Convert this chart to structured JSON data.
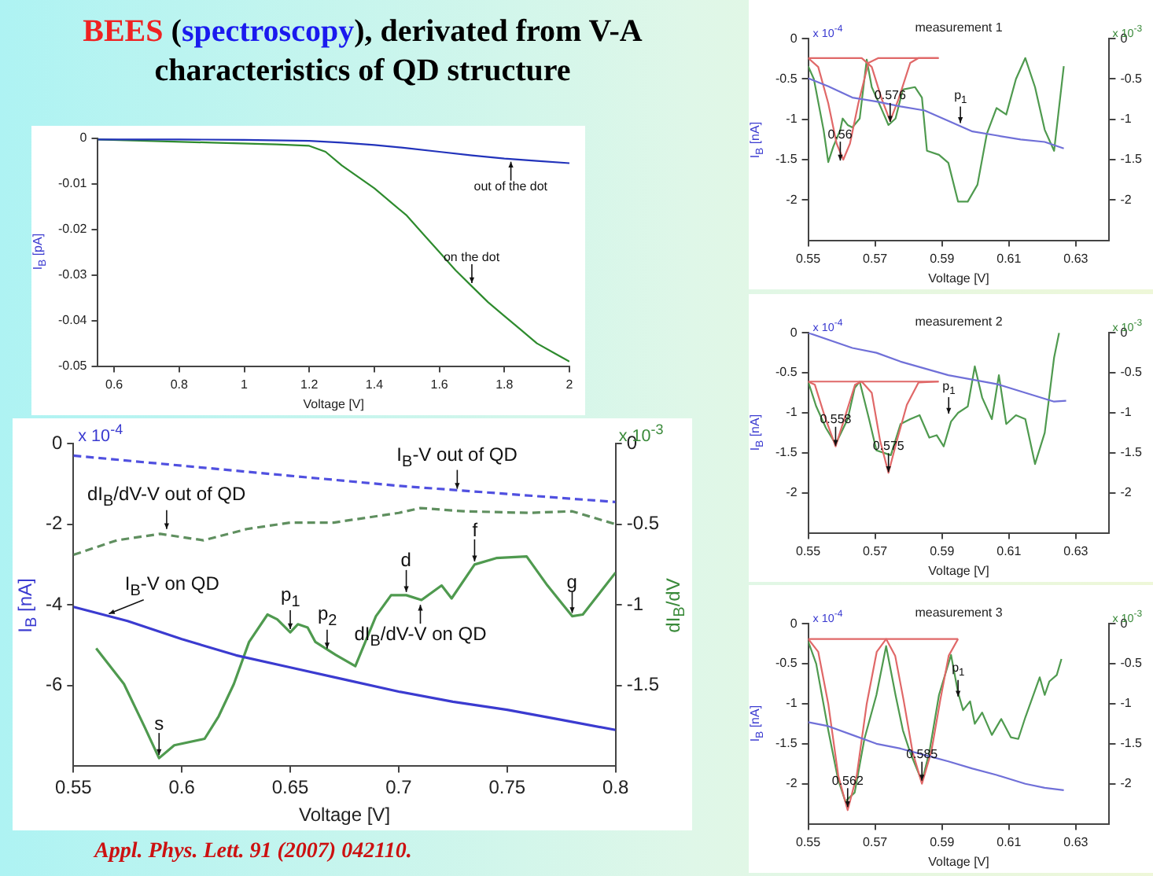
{
  "chart_data": [
    {
      "type": "line",
      "title": "BEES (spectroscopy), derivated from V-A characteristics of QD structure",
      "xlabel": "Voltage [V]",
      "ylabel": "I$_{B}$ [pA]",
      "xlim": [
        0.55,
        2
      ],
      "xticks": [
        0.6,
        0.8,
        1,
        1.2,
        1.4,
        1.6,
        1.8,
        2
      ],
      "ylim": [
        -0.05,
        0
      ],
      "yticks": [
        0,
        -0.01,
        -0.02,
        -0.03,
        -0.04,
        -0.05
      ],
      "grid": false,
      "legend": false,
      "series": [
        {
          "color": "#2233bb",
          "x": [
            0.55,
            0.8,
            1,
            1.2,
            1.3,
            1.4,
            1.5,
            1.6,
            1.7,
            1.8,
            1.9,
            2
          ],
          "values": [
            -0.0003,
            -0.0003,
            -0.0004,
            -0.0006,
            -0.001,
            -0.0015,
            -0.0022,
            -0.003,
            -0.0038,
            -0.0045,
            -0.005,
            -0.0055
          ]
        },
        {
          "color": "#2e8b2e",
          "x": [
            0.55,
            0.7,
            0.9,
            1.1,
            1.2,
            1.25,
            1.3,
            1.35,
            1.4,
            1.45,
            1.5,
            1.55,
            1.6,
            1.65,
            1.7,
            1.75,
            1.8,
            1.85,
            1.9,
            1.95,
            2
          ],
          "values": [
            -0.0003,
            -0.0006,
            -0.001,
            -0.0014,
            -0.0017,
            -0.003,
            -0.006,
            -0.0085,
            -0.011,
            -0.014,
            -0.017,
            -0.021,
            -0.025,
            -0.029,
            -0.0325,
            -0.036,
            -0.039,
            -0.042,
            -0.045,
            -0.047,
            -0.049
          ]
        }
      ],
      "annotations": [
        {
          "text": "out of the dot",
          "x": 1.82,
          "y": -0.0045
        },
        {
          "text": "on the dot",
          "x": 1.7,
          "y": -0.0325
        }
      ]
    },
    {
      "type": "line",
      "xlabel": "Voltage [V]",
      "ylabel": "I$_{B}$ [nA]",
      "y2label": "dI$_{B}$/dV",
      "xlim": [
        0.55,
        0.8
      ],
      "xticks": [
        0.55,
        0.6,
        0.65,
        0.7,
        0.75,
        0.8
      ],
      "ylim": [
        -8,
        0
      ],
      "yticks": [
        0,
        -2,
        -4,
        -6
      ],
      "y2lim": [
        -2,
        0
      ],
      "y2ticks": [
        0,
        -0.5,
        -1,
        -1.5
      ],
      "grid": false,
      "legend": false,
      "series": [
        {
          "color": "#3b3bd0",
          "x": [
            0.55,
            0.575,
            0.6,
            0.625,
            0.65,
            0.675,
            0.7,
            0.725,
            0.75,
            0.775,
            0.8
          ],
          "values": [
            -4.05,
            -4.4,
            -4.85,
            -5.25,
            -5.55,
            -5.85,
            -6.15,
            -6.4,
            -6.6,
            -6.85,
            -7.1
          ]
        },
        {
          "color": "#5050e0",
          "line_style": "dashed",
          "x": [
            0.55,
            0.6,
            0.65,
            0.7,
            0.75,
            0.8
          ],
          "values": [
            -0.3,
            -0.55,
            -0.8,
            -1.05,
            -1.25,
            -1.45
          ]
        },
        {
          "color": "#5f8f5f",
          "line_style": "dashed",
          "axis": "y2",
          "x": [
            0.55,
            0.57,
            0.59,
            0.6,
            0.61,
            0.63,
            0.65,
            0.67,
            0.7,
            0.71,
            0.73,
            0.76,
            0.78,
            0.8
          ],
          "values": [
            -0.69,
            -0.6,
            -0.56,
            -0.58,
            -0.6,
            -0.53,
            -0.49,
            -0.49,
            -0.43,
            -0.4,
            -0.42,
            -0.43,
            -0.42,
            -0.5
          ]
        },
        {
          "color": "#4f9a4f",
          "axis": "y2",
          "x": [
            0.5605,
            0.5733,
            0.5826,
            0.5895,
            0.5965,
            0.6105,
            0.617,
            0.624,
            0.631,
            0.6395,
            0.644,
            0.65,
            0.6535,
            0.658,
            0.6616,
            0.671,
            0.68,
            0.6895,
            0.6965,
            0.7035,
            0.7105,
            0.7198,
            0.7244,
            0.735,
            0.745,
            0.759,
            0.7686,
            0.78,
            0.7849,
            0.8
          ],
          "values": [
            -1.27,
            -1.49,
            -1.75,
            -1.95,
            -1.87,
            -1.83,
            -1.69,
            -1.49,
            -1.23,
            -1.06,
            -1.09,
            -1.17,
            -1.12,
            -1.14,
            -1.23,
            -1.31,
            -1.38,
            -1.07,
            -0.94,
            -0.94,
            -0.97,
            -0.88,
            -0.96,
            -0.75,
            -0.71,
            -0.7,
            -0.88,
            -1.07,
            -1.06,
            -0.8
          ]
        }
      ],
      "annotations": [
        "x 10$^{-4}$",
        "x 10$^{-3}$",
        "Appl. Phys. Lett. 91 (2007) 042110.",
        {
          "text": "I$_{B}$-V out of QD",
          "x": 0.727,
          "y": -1.2
        },
        {
          "text": "dI$_{B}$/dV-V out of QD",
          "x": 0.593,
          "y": -2.2
        },
        {
          "text": "I$_{B}$-V on QD",
          "x": 0.565,
          "y": -4.25
        },
        {
          "text": "s",
          "x": 0.5895,
          "y": -7.8
        },
        {
          "text": "p$_{1}$",
          "x": 0.65,
          "y": -4.68
        },
        {
          "text": "p$_{2}$",
          "x": 0.667,
          "y": -5.16
        },
        {
          "text": "d",
          "x": 0.7035,
          "y": -3.76
        },
        {
          "text": "f",
          "x": 0.735,
          "y": -3.0
        },
        {
          "text": "g",
          "x": 0.78,
          "y": -4.28
        },
        {
          "text": "dI$_{B}$/dV-V on QD",
          "x": 0.71,
          "y": -3.92
        }
      ]
    },
    {
      "type": "line",
      "title": "measurement 1",
      "xlabel": "Voltage [V]",
      "ylabel": "I$_{B}$ [nA]",
      "xlim": [
        0.55,
        0.64
      ],
      "xticks": [
        0.55,
        0.57,
        0.59,
        0.61,
        0.63
      ],
      "ylim": [
        -2.5,
        0
      ],
      "yticks": [
        0,
        -0.5,
        -1,
        -1.5,
        -2
      ],
      "y2lim": [
        -2.5,
        0
      ],
      "y2ticks": [
        0,
        -0.5,
        -1,
        -1.5,
        -2
      ],
      "grid": false,
      "legend": false,
      "series": [
        {
          "color": "#7070d8",
          "x": [
            0.55,
            0.556,
            0.5632,
            0.5704,
            0.5776,
            0.5848,
            0.5919,
            0.5991,
            0.6063,
            0.6135,
            0.6207,
            0.6264
          ],
          "values": [
            -0.49,
            -0.59,
            -0.73,
            -0.78,
            -0.84,
            -0.89,
            -1.02,
            -1.15,
            -1.2,
            -1.25,
            -1.28,
            -1.36
          ]
        },
        {
          "color": "#e06868",
          "axis": "y2",
          "x": [
            0.55,
            0.553,
            0.556,
            0.5585,
            0.5605,
            0.5625,
            0.565,
            0.568,
            0.571,
            0.589
          ],
          "values": [
            -0.24,
            -0.35,
            -0.8,
            -1.3,
            -1.5,
            -1.3,
            -0.8,
            -0.3,
            -0.24,
            -0.24
          ]
        },
        {
          "color": "#e06868",
          "axis": "y2",
          "x": [
            0.55,
            0.566,
            0.569,
            0.572,
            0.5745,
            0.577,
            0.5805,
            0.583,
            0.589
          ],
          "values": [
            -0.24,
            -0.24,
            -0.35,
            -0.75,
            -1.02,
            -0.75,
            -0.3,
            -0.24,
            -0.24
          ]
        },
        {
          "color": "#4f9a4f",
          "axis": "y2",
          "x": [
            0.55,
            0.5517,
            0.5546,
            0.556,
            0.5575,
            0.5596,
            0.5603,
            0.5618,
            0.5632,
            0.5654,
            0.5675,
            0.569,
            0.5718,
            0.574,
            0.5761,
            0.5783,
            0.5819,
            0.584,
            0.5855,
            0.5891,
            0.5919,
            0.5948,
            0.5977,
            0.6006,
            0.6034,
            0.6063,
            0.6092,
            0.6121,
            0.6149,
            0.6178,
            0.6207,
            0.6235,
            0.6264
          ],
          "values": [
            -0.34,
            -0.5,
            -1.13,
            -1.53,
            -1.34,
            -1.13,
            -0.99,
            -1.07,
            -1.1,
            -0.99,
            -0.26,
            -0.6,
            -0.86,
            -1.07,
            -0.99,
            -0.63,
            -0.6,
            -0.73,
            -1.39,
            -1.44,
            -1.54,
            -2.02,
            -2.02,
            -1.81,
            -1.18,
            -0.86,
            -0.94,
            -0.5,
            -0.24,
            -0.6,
            -1.13,
            -1.39,
            -0.34
          ]
        }
      ],
      "annotations": [
        "x 10$^{-4}$",
        "x 10$^{-3}$",
        {
          "text": "0.56",
          "x": 0.5596,
          "y": -1.55
        },
        {
          "text": "0.576",
          "x": 0.5745,
          "y": -1.07
        },
        {
          "text": "p$_{1}$",
          "x": 0.5955,
          "y": -1.085
        }
      ]
    },
    {
      "type": "line",
      "title": "measurement 2",
      "xlabel": "Voltage [V]",
      "ylabel": "I$_{B}$ [nA]",
      "xlim": [
        0.55,
        0.64
      ],
      "xticks": [
        0.55,
        0.57,
        0.59,
        0.61,
        0.63
      ],
      "ylim": [
        -2.5,
        0
      ],
      "yticks": [
        0,
        -0.5,
        -1,
        -1.5,
        -2
      ],
      "y2lim": [
        -2.5,
        0
      ],
      "y2ticks": [
        0,
        -0.5,
        -1,
        -1.5,
        -2
      ],
      "grid": false,
      "legend": false,
      "series": [
        {
          "color": "#7070d8",
          "x": [
            0.55,
            0.5632,
            0.5704,
            0.5776,
            0.5919,
            0.6063,
            0.6149,
            0.6235,
            0.6271
          ],
          "values": [
            0,
            -0.19,
            -0.25,
            -0.36,
            -0.53,
            -0.64,
            -0.75,
            -0.86,
            -0.85
          ]
        },
        {
          "color": "#e06868",
          "axis": "y2",
          "x": [
            0.55,
            0.552,
            0.555,
            0.5582,
            0.561,
            0.564,
            0.566,
            0.589
          ],
          "values": [
            -0.61,
            -0.65,
            -1.05,
            -1.42,
            -1.05,
            -0.65,
            -0.61,
            -0.61
          ]
        },
        {
          "color": "#e06868",
          "axis": "y2",
          "x": [
            0.55,
            0.566,
            0.569,
            0.5715,
            0.574,
            0.5765,
            0.5795,
            0.583,
            0.589
          ],
          "values": [
            -0.61,
            -0.61,
            -0.75,
            -1.35,
            -1.75,
            -1.35,
            -0.9,
            -0.62,
            -0.61
          ]
        },
        {
          "color": "#4f9a4f",
          "axis": "y2",
          "x": [
            0.55,
            0.5524,
            0.5553,
            0.5582,
            0.5618,
            0.5639,
            0.5654,
            0.5682,
            0.5704,
            0.5726,
            0.5747,
            0.5776,
            0.5805,
            0.5833,
            0.5862,
            0.5884,
            0.5905,
            0.5927,
            0.5948,
            0.5977,
            0.5998,
            0.602,
            0.6049,
            0.607,
            0.6092,
            0.6121,
            0.6149,
            0.6178,
            0.6207,
            0.6235,
            0.625
          ],
          "values": [
            -0.61,
            -0.92,
            -1.19,
            -1.39,
            -1.08,
            -0.69,
            -0.61,
            -1.08,
            -1.47,
            -1.5,
            -1.53,
            -1.14,
            -1.08,
            -1.03,
            -1.31,
            -1.28,
            -1.42,
            -1.11,
            -1.0,
            -0.92,
            -0.42,
            -0.81,
            -1.08,
            -0.53,
            -1.14,
            -1.03,
            -1.08,
            -1.64,
            -1.25,
            -0.31,
            0
          ]
        }
      ],
      "annotations": [
        "x 10$^{-4}$",
        "x 10$^{-3}$",
        {
          "text": "0.558",
          "x": 0.5582,
          "y": -1.45
        },
        {
          "text": "0.575",
          "x": 0.574,
          "y": -1.78
        },
        {
          "text": "p$_{1}$",
          "x": 0.592,
          "y": -1.05
        }
      ]
    },
    {
      "type": "line",
      "title": "measurement 3",
      "xlabel": "Voltage [V]",
      "ylabel": "I$_{B}$ [nA]",
      "xlim": [
        0.55,
        0.64
      ],
      "xticks": [
        0.55,
        0.57,
        0.59,
        0.61,
        0.63
      ],
      "ylim": [
        -2.5,
        0
      ],
      "yticks": [
        0,
        -0.5,
        -1,
        -1.5,
        -2
      ],
      "y2lim": [
        -2.5,
        0
      ],
      "y2ticks": [
        0,
        -0.5,
        -1,
        -1.5,
        -2
      ],
      "grid": false,
      "legend": false,
      "series": [
        {
          "color": "#7070d8",
          "x": [
            0.55,
            0.556,
            0.5632,
            0.5704,
            0.5776,
            0.5848,
            0.5919,
            0.5991,
            0.6063,
            0.6149,
            0.6207,
            0.6264
          ],
          "values": [
            -1.23,
            -1.28,
            -1.39,
            -1.5,
            -1.56,
            -1.64,
            -1.72,
            -1.81,
            -1.89,
            -2.0,
            -2.05,
            -2.08
          ]
        },
        {
          "color": "#e06868",
          "axis": "y2",
          "x": [
            0.55,
            0.553,
            0.556,
            0.559,
            0.5618,
            0.5645,
            0.5675,
            0.5705,
            0.5733,
            0.5948
          ],
          "values": [
            -0.19,
            -0.35,
            -1.0,
            -1.9,
            -2.33,
            -1.9,
            -1.0,
            -0.35,
            -0.19,
            -0.19
          ]
        },
        {
          "color": "#e06868",
          "axis": "y2",
          "x": [
            0.55,
            0.5733,
            0.576,
            0.5785,
            0.5812,
            0.584,
            0.5868,
            0.5895,
            0.592,
            0.5948
          ],
          "values": [
            -0.19,
            -0.19,
            -0.4,
            -0.95,
            -1.6,
            -2.0,
            -1.6,
            -0.95,
            -0.4,
            -0.19
          ]
        },
        {
          "color": "#4f9a4f",
          "axis": "y2",
          "x": [
            0.55,
            0.5524,
            0.556,
            0.5589,
            0.5611,
            0.5639,
            0.5668,
            0.5704,
            0.5733,
            0.5761,
            0.5783,
            0.5805,
            0.584,
            0.5862,
            0.5891,
            0.5927,
            0.5948,
            0.5963,
            0.5984,
            0.5998,
            0.602,
            0.6049,
            0.6077,
            0.6106,
            0.6128,
            0.6149,
            0.6192,
            0.6207,
            0.6221,
            0.6243,
            0.6257
          ],
          "values": [
            -0.22,
            -0.5,
            -1.33,
            -1.94,
            -2.22,
            -2.11,
            -1.44,
            -0.89,
            -0.28,
            -0.89,
            -1.33,
            -1.61,
            -1.97,
            -1.61,
            -0.89,
            -0.39,
            -0.86,
            -1.08,
            -0.97,
            -1.25,
            -1.11,
            -1.39,
            -1.19,
            -1.42,
            -1.44,
            -1.17,
            -0.67,
            -0.89,
            -0.72,
            -0.64,
            -0.44
          ]
        }
      ],
      "annotations": [
        "x 10$^{-4}$",
        "x 10$^{-3}$",
        {
          "text": "0.562",
          "x": 0.5618,
          "y": -2.33
        },
        {
          "text": "0.585",
          "x": 0.584,
          "y": -2.0
        },
        {
          "text": "p$_{1}$",
          "x": 0.5948,
          "y": -0.95
        }
      ]
    }
  ]
}
